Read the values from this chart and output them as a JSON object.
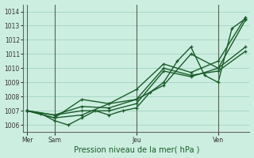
{
  "xlabel": "Pression niveau de la mer( hPa )",
  "bg_color": "#cceee0",
  "grid_color": "#99ccbb",
  "line_color": "#1a5c2a",
  "vline_color": "#556655",
  "ylim": [
    1005.5,
    1014.5
  ],
  "yticks": [
    1006,
    1007,
    1008,
    1009,
    1010,
    1011,
    1012,
    1013,
    1014
  ],
  "xlim": [
    -0.3,
    16.3
  ],
  "xtick_positions": [
    0,
    2,
    8,
    14
  ],
  "xtick_labels": [
    "Mer",
    "Sam",
    "Jeu",
    "Ven"
  ],
  "vline_x": [
    0,
    2,
    8,
    14
  ],
  "series": [
    [
      0,
      1007.0
    ],
    [
      1,
      1006.8
    ],
    [
      2,
      1006.3
    ],
    [
      3,
      1006.0
    ],
    [
      4,
      1006.5
    ],
    [
      5,
      1007.0
    ],
    [
      6,
      1006.7
    ],
    [
      7,
      1007.0
    ],
    [
      8,
      1007.2
    ],
    [
      9,
      1008.3
    ],
    [
      10,
      1009.0
    ],
    [
      11,
      1010.5
    ],
    [
      12,
      1011.5
    ],
    [
      13,
      1009.5
    ],
    [
      14,
      1009.0
    ],
    [
      15,
      1012.8
    ],
    [
      16,
      1013.5
    ]
  ],
  "series2": [
    [
      0,
      1007.0
    ],
    [
      2,
      1006.5
    ],
    [
      4,
      1006.7
    ],
    [
      6,
      1007.5
    ],
    [
      8,
      1007.8
    ],
    [
      10,
      1008.8
    ],
    [
      12,
      1011.0
    ],
    [
      14,
      1010.0
    ],
    [
      16,
      1011.5
    ]
  ],
  "series3": [
    [
      0,
      1007.0
    ],
    [
      2,
      1006.5
    ],
    [
      4,
      1007.8
    ],
    [
      6,
      1007.5
    ],
    [
      8,
      1008.5
    ],
    [
      10,
      1010.3
    ],
    [
      12,
      1009.7
    ],
    [
      14,
      1010.5
    ],
    [
      16,
      1013.6
    ]
  ],
  "series4": [
    [
      0,
      1007.0
    ],
    [
      2,
      1006.7
    ],
    [
      4,
      1007.3
    ],
    [
      6,
      1007.2
    ],
    [
      8,
      1007.8
    ],
    [
      10,
      1010.0
    ],
    [
      12,
      1009.5
    ],
    [
      14,
      1009.8
    ],
    [
      16,
      1011.2
    ]
  ],
  "series5": [
    [
      0,
      1007.0
    ],
    [
      2,
      1006.7
    ],
    [
      4,
      1007.0
    ],
    [
      6,
      1007.0
    ],
    [
      8,
      1007.5
    ],
    [
      10,
      1009.8
    ],
    [
      12,
      1009.4
    ],
    [
      14,
      1010.0
    ],
    [
      16,
      1013.4
    ]
  ],
  "marker_size": 3.5,
  "line_width": 1.0
}
